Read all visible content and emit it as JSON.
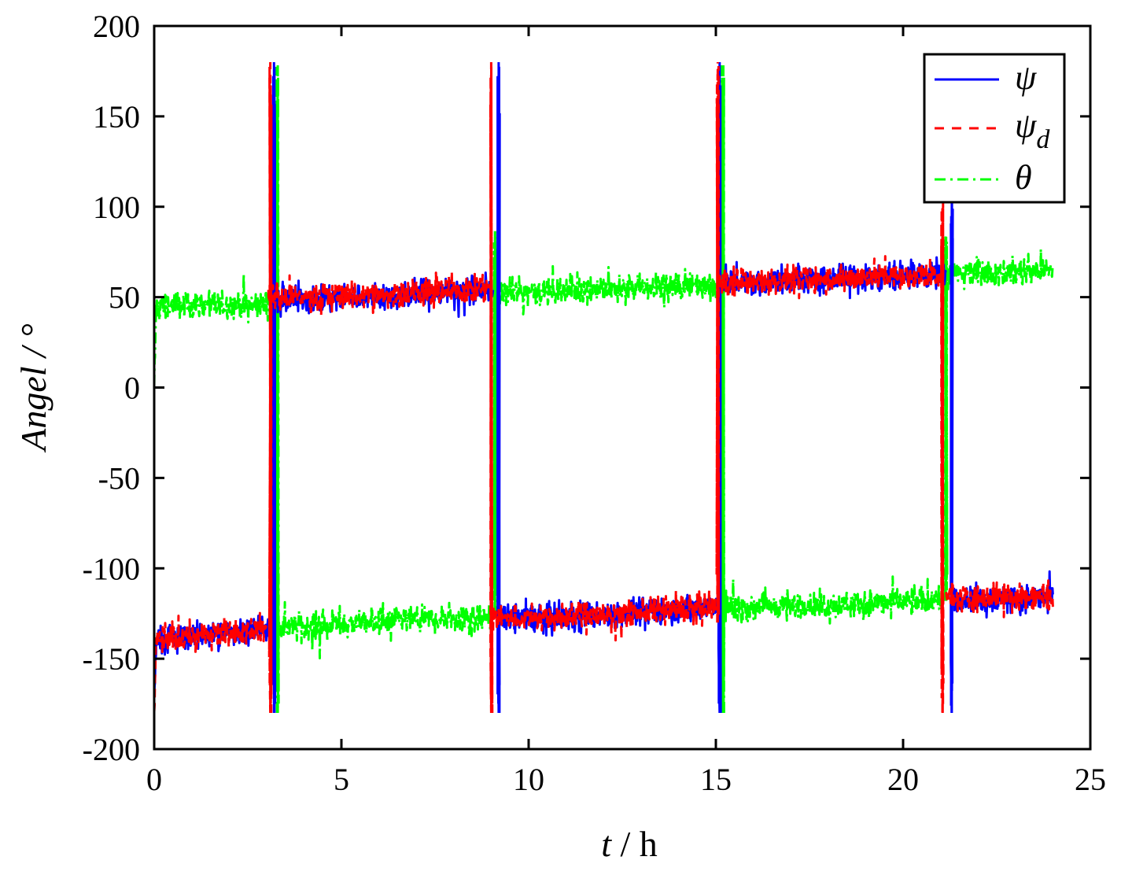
{
  "chart_data": {
    "type": "line",
    "xlabel_var": "t",
    "xlabel_unit": " / h",
    "ylabel": "Angel / °",
    "xlim": [
      0,
      25
    ],
    "ylim": [
      -200,
      200
    ],
    "xticks": [
      "0",
      "5",
      "10",
      "15",
      "20",
      "25"
    ],
    "yticks": [
      "200",
      "150",
      "100",
      "50",
      "0",
      "-50",
      "-100",
      "-150",
      "-200"
    ],
    "grid": false,
    "legend_position": "top-right",
    "colors": {
      "psi": "#0000ff",
      "psi_d": "#ff0000",
      "theta": "#00ff00"
    },
    "series": [
      {
        "key": "psi",
        "name": "ψ",
        "style": "solid",
        "noise": 5,
        "segments": [
          [
            [
              0.0,
              -175
            ],
            [
              0.05,
              -140
            ],
            [
              3.05,
              -133
            ]
          ],
          [
            [
              3.1,
              50
            ],
            [
              3.3,
              48
            ],
            [
              6.0,
              50
            ],
            [
              9.05,
              55
            ]
          ],
          [
            [
              9.25,
              -128
            ],
            [
              12.0,
              -126
            ],
            [
              15.05,
              -121
            ]
          ],
          [
            [
              15.2,
              58
            ],
            [
              18.0,
              60
            ],
            [
              21.15,
              63
            ]
          ],
          [
            [
              21.35,
              -117
            ],
            [
              24.0,
              -116
            ]
          ]
        ]
      },
      {
        "key": "psi_d",
        "name": "ψd",
        "style": "dashed",
        "noise": 5,
        "segments": [
          [
            [
              0.0,
              -180
            ],
            [
              0.05,
              -140
            ],
            [
              3.0,
              -133
            ]
          ],
          [
            [
              3.05,
              50
            ],
            [
              6.0,
              51
            ],
            [
              8.95,
              55
            ]
          ],
          [
            [
              9.05,
              -128
            ],
            [
              12.0,
              -126
            ],
            [
              15.0,
              -121
            ]
          ],
          [
            [
              15.1,
              58
            ],
            [
              18.0,
              60
            ],
            [
              21.0,
              63
            ]
          ],
          [
            [
              21.15,
              -117
            ],
            [
              24.0,
              -115
            ]
          ]
        ]
      },
      {
        "key": "theta",
        "name": "θ",
        "style": "dashdot",
        "noise": 5,
        "segments": [
          [
            [
              0.0,
              0
            ],
            [
              0.05,
              45
            ],
            [
              3.0,
              46
            ],
            [
              3.25,
              47
            ]
          ],
          [
            [
              3.3,
              -133
            ],
            [
              6.0,
              -130
            ],
            [
              9.0,
              -127
            ]
          ],
          [
            [
              9.1,
              52
            ],
            [
              12.0,
              55
            ],
            [
              15.1,
              57
            ]
          ],
          [
            [
              15.15,
              -122
            ],
            [
              18.0,
              -120
            ],
            [
              21.0,
              -118
            ]
          ],
          [
            [
              21.1,
              63
            ],
            [
              24.0,
              65
            ]
          ]
        ]
      }
    ],
    "spikes": [
      {
        "series": "psi",
        "x": 3.2,
        "from": -180,
        "to": 180
      },
      {
        "series": "psi_d",
        "x": 3.1,
        "from": -180,
        "to": 180
      },
      {
        "series": "theta",
        "x": 3.3,
        "from": -180,
        "to": 180
      },
      {
        "series": "psi",
        "x": 9.2,
        "from": -180,
        "to": 180
      },
      {
        "series": "psi_d",
        "x": 9.0,
        "from": -180,
        "to": 180
      },
      {
        "series": "theta",
        "x": 9.1,
        "from": -127,
        "to": 88
      },
      {
        "series": "psi",
        "x": 15.1,
        "from": -180,
        "to": 180
      },
      {
        "series": "psi_d",
        "x": 15.05,
        "from": -130,
        "to": 180
      },
      {
        "series": "theta",
        "x": 15.15,
        "from": -180,
        "to": 180
      },
      {
        "series": "theta",
        "x": 15.2,
        "from": -180,
        "to": 180
      },
      {
        "series": "psi",
        "x": 21.3,
        "from": -180,
        "to": 105
      },
      {
        "series": "psi_d",
        "x": 21.05,
        "from": -180,
        "to": 105
      },
      {
        "series": "theta",
        "x": 21.15,
        "from": -118,
        "to": 85
      }
    ]
  }
}
